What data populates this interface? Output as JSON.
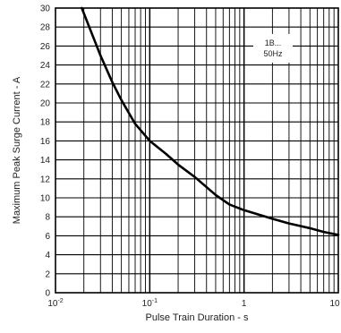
{
  "chart_data": {
    "type": "line",
    "title": "",
    "xlabel": "Pulse Train Duration - s",
    "ylabel": "Maximum Peak Surge Current - A",
    "x_scale": "log",
    "xlim": [
      0.01,
      10
    ],
    "ylim": [
      0,
      30
    ],
    "grid": true,
    "x_ticks": [
      {
        "value": 0.01,
        "base": "10",
        "exp": "-2"
      },
      {
        "value": 0.1,
        "base": "10",
        "exp": "-1"
      },
      {
        "value": 1,
        "base": "1",
        "exp": ""
      },
      {
        "value": 10,
        "base": "10",
        "exp": ""
      }
    ],
    "y_ticks": [
      0,
      2,
      4,
      6,
      8,
      10,
      12,
      14,
      16,
      18,
      20,
      22,
      24,
      26,
      28,
      30
    ],
    "annotation": [
      "1B...",
      "50Hz"
    ],
    "series": [
      {
        "x": [
          0.019,
          0.025,
          0.03,
          0.04,
          0.05,
          0.07,
          0.1,
          0.15,
          0.2,
          0.3,
          0.5,
          0.7,
          1,
          2,
          3,
          5,
          7,
          10
        ],
        "y": [
          30,
          27,
          25,
          22.2,
          20.3,
          17.8,
          16,
          14.6,
          13.5,
          12.2,
          10.3,
          9.3,
          8.7,
          7.8,
          7.3,
          6.8,
          6.4,
          6.1
        ]
      }
    ]
  }
}
